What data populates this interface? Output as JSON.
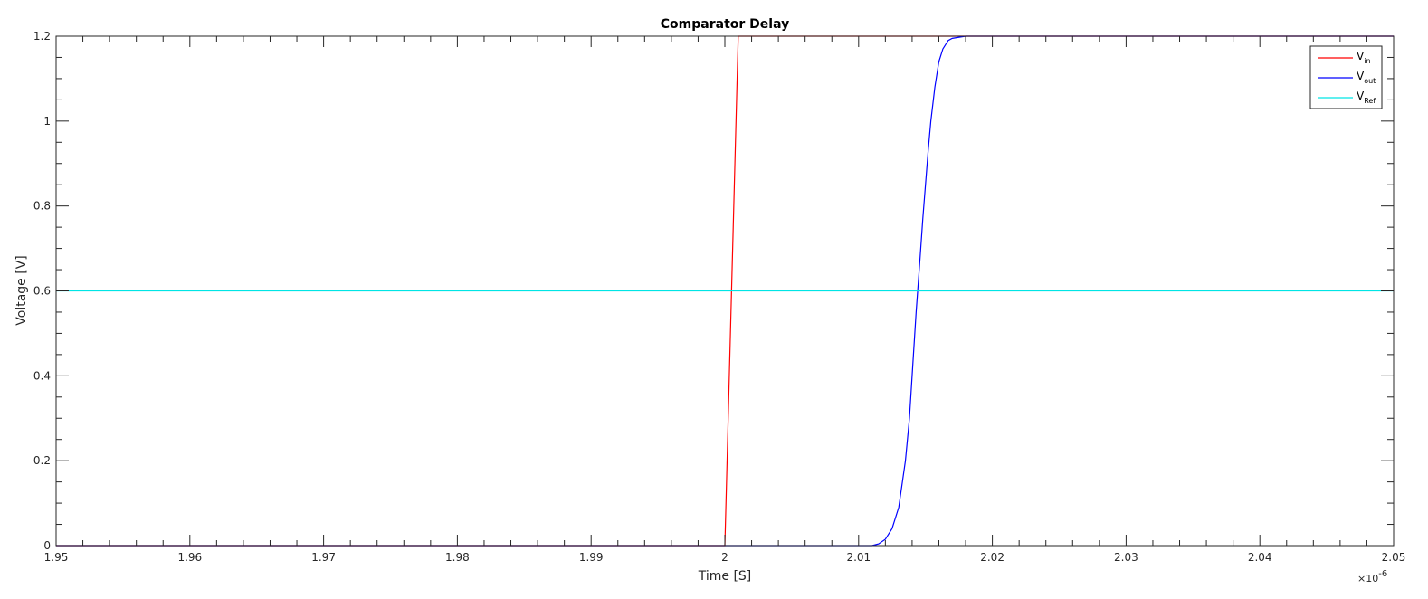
{
  "chart_data": {
    "type": "line",
    "title": "Comparator Delay",
    "xlabel": "Time [S]",
    "ylabel": "Voltage [V]",
    "x_multiplier": "×10",
    "x_multiplier_exponent": "-6",
    "xlim": [
      1.95,
      2.05
    ],
    "ylim": [
      0,
      1.2
    ],
    "xticks": [
      "1.95",
      "1.96",
      "1.97",
      "1.98",
      "1.99",
      "2",
      "2.01",
      "2.02",
      "2.03",
      "2.04",
      "2.05"
    ],
    "yticks": [
      "0",
      "0.2",
      "0.4",
      "0.6",
      "0.8",
      "1",
      "1.2"
    ],
    "grid": false,
    "legend_position": "top-right",
    "series": [
      {
        "key": "vin",
        "label_main": "V",
        "label_sub": "in",
        "color": "#ff0000",
        "x": [
          1.95,
          2.0,
          2.001,
          2.05
        ],
        "y": [
          0,
          0,
          1.2,
          1.2
        ]
      },
      {
        "key": "vout",
        "label_main": "V",
        "label_sub": "out",
        "color": "#0000ff",
        "x": [
          1.95,
          2.011,
          2.0115,
          2.012,
          2.0125,
          2.013,
          2.0135,
          2.0138,
          2.014,
          2.0143,
          2.0146,
          2.0148,
          2.015,
          2.0152,
          2.0154,
          2.0157,
          2.016,
          2.0163,
          2.0167,
          2.017,
          2.018,
          2.05
        ],
        "y": [
          0,
          0,
          0.004,
          0.015,
          0.04,
          0.09,
          0.2,
          0.3,
          0.4,
          0.55,
          0.68,
          0.77,
          0.85,
          0.93,
          1.0,
          1.08,
          1.14,
          1.17,
          1.19,
          1.195,
          1.2,
          1.2
        ]
      },
      {
        "key": "vref",
        "label_main": "V",
        "label_sub": "Ref",
        "color": "#00e5e5",
        "x": [
          1.95,
          2.05
        ],
        "y": [
          0.6,
          0.6
        ]
      }
    ]
  }
}
